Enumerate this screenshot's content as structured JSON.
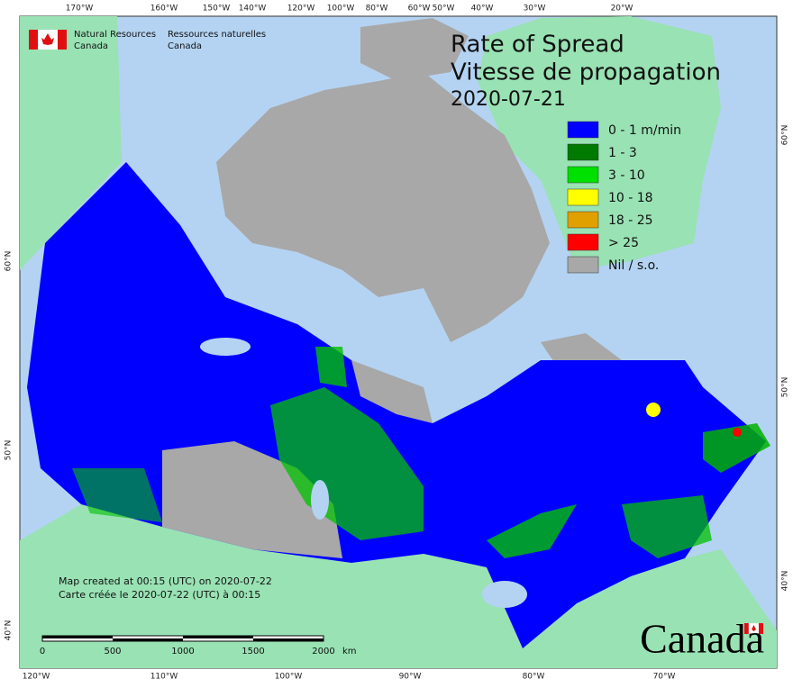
{
  "header": {
    "agency_en": [
      "Natural Resources",
      "Canada"
    ],
    "agency_fr": [
      "Ressources naturelles",
      "Canada"
    ]
  },
  "title": [
    "Rate of Spread",
    "Vitesse de propagation",
    "2020-07-21"
  ],
  "legend": [
    {
      "label": "0 - 1 m/min",
      "color": "#0000ff"
    },
    {
      "label": "1 - 3",
      "color": "#007a00"
    },
    {
      "label": "3 - 10",
      "color": "#00e000"
    },
    {
      "label": "10 - 18",
      "color": "#ffff00"
    },
    {
      "label": "18 - 25",
      "color": "#e0a000"
    },
    {
      "label": "> 25",
      "color": "#ff0000"
    },
    {
      "label": "Nil / s.o.",
      "color": "#a8a8a8"
    }
  ],
  "graticule": {
    "top": [
      "170°W",
      "160°W",
      "150°W",
      "140°W",
      "120°W",
      "100°W",
      "80°W",
      "60°W",
      "50°W",
      "40°W",
      "30°W",
      "20°W"
    ],
    "bottom": [
      "120°W",
      "110°W",
      "100°W",
      "90°W",
      "80°W",
      "70°W"
    ],
    "left": [
      "60°N",
      "50°N",
      "40°N"
    ],
    "right": [
      "60°N",
      "50°N",
      "40°N"
    ]
  },
  "footer": [
    "Map created at 00:15 (UTC) on 2020-07-22",
    "Carte créée le 2020-07-22 (UTC) à 00:15"
  ],
  "scale_bar": {
    "labels": [
      "0",
      "500",
      "1000",
      "1500",
      "2000"
    ],
    "unit": "km"
  },
  "wordmark": "Canada"
}
